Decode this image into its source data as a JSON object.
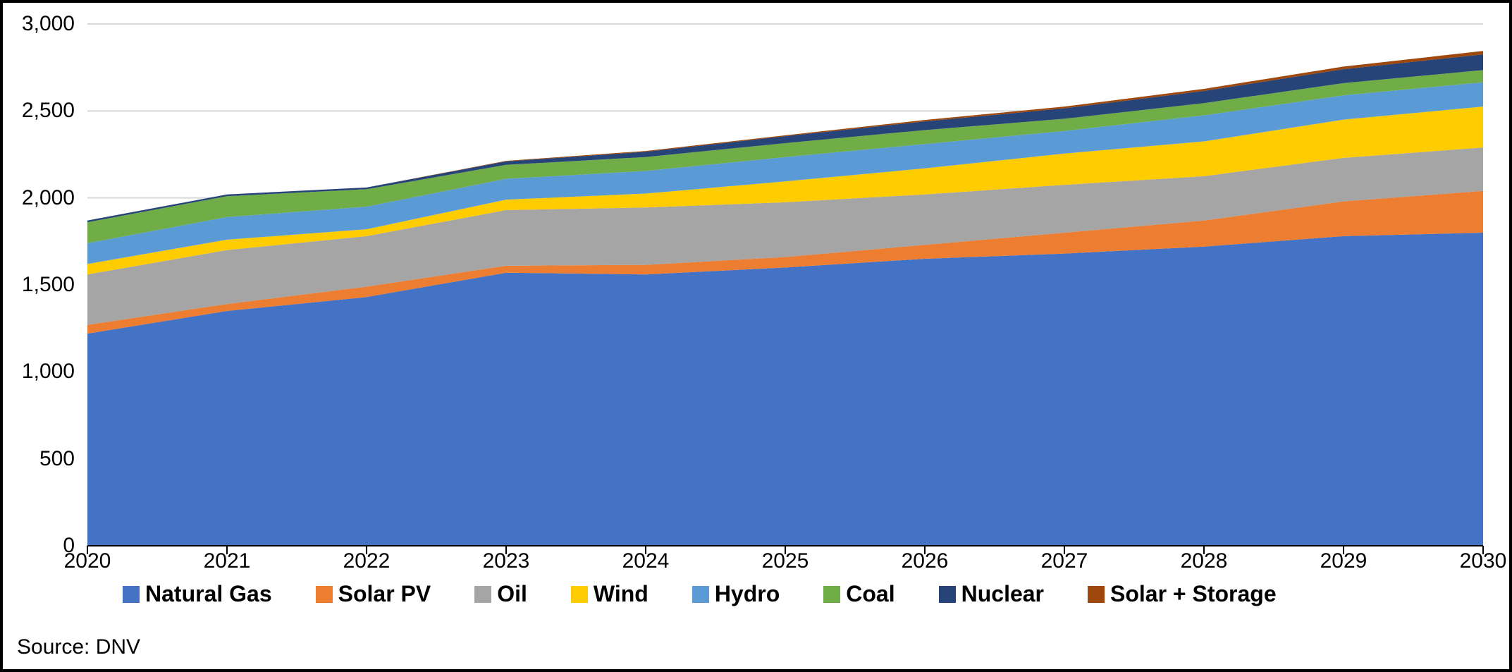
{
  "chart": {
    "type": "area-stacked",
    "background_color": "#ffffff",
    "border_color": "#000000",
    "xlim": [
      2020,
      2030
    ],
    "ylim": [
      0,
      3000
    ],
    "ytick_step": 500,
    "y_tick_labels": [
      "0",
      "500",
      "1,000",
      "1,500",
      "2,000",
      "2,500",
      "3,000"
    ],
    "x_tick_labels": [
      "2020",
      "2021",
      "2022",
      "2023",
      "2024",
      "2025",
      "2026",
      "2027",
      "2028",
      "2029",
      "2030"
    ],
    "grid_color": "#d9d9d9",
    "axis_color": "#000000",
    "axis_font_size": 30,
    "legend_font_size": 32,
    "legend_font_weight": "bold",
    "source_text": "Source: DNV",
    "source_font_size": 30,
    "years": [
      2020,
      2021,
      2022,
      2023,
      2024,
      2025,
      2026,
      2027,
      2028,
      2029,
      2030
    ],
    "series": [
      {
        "name": "Natural Gas",
        "color": "#4472c4",
        "values": [
          1220,
          1350,
          1430,
          1570,
          1560,
          1600,
          1650,
          1680,
          1720,
          1780,
          1800
        ]
      },
      {
        "name": "Solar PV",
        "color": "#ed7d31",
        "values": [
          50,
          40,
          60,
          40,
          55,
          60,
          80,
          120,
          150,
          200,
          240
        ]
      },
      {
        "name": "Oil",
        "color": "#a5a5a5",
        "values": [
          290,
          310,
          290,
          320,
          330,
          315,
          290,
          275,
          255,
          250,
          250
        ]
      },
      {
        "name": "Wind",
        "color": "#ffcc00",
        "values": [
          60,
          60,
          40,
          60,
          80,
          120,
          150,
          180,
          200,
          220,
          235
        ]
      },
      {
        "name": "Hydro",
        "color": "#5b9bd5",
        "values": [
          120,
          130,
          130,
          120,
          130,
          140,
          140,
          130,
          150,
          140,
          140
        ]
      },
      {
        "name": "Coal",
        "color": "#70ad47",
        "values": [
          120,
          120,
          100,
          80,
          80,
          80,
          80,
          70,
          70,
          70,
          70
        ]
      },
      {
        "name": "Nuclear",
        "color": "#264478",
        "values": [
          10,
          10,
          10,
          20,
          30,
          40,
          50,
          60,
          70,
          80,
          90
        ]
      },
      {
        "name": "Solar + Storage",
        "color": "#9e480e",
        "values": [
          0,
          0,
          0,
          3,
          5,
          5,
          8,
          10,
          12,
          15,
          20
        ]
      }
    ]
  }
}
